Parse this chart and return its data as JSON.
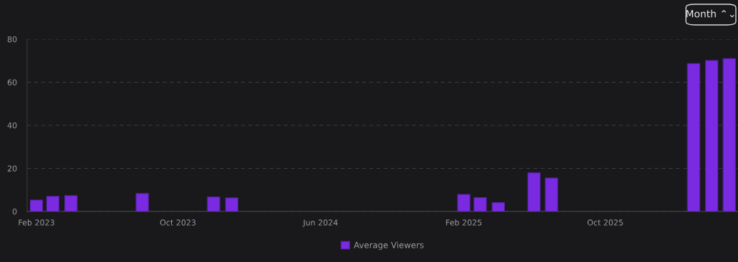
{
  "chart_data": {
    "type": "bar",
    "x": [
      "2023-02",
      "2023-03",
      "2023-04",
      "2023-08",
      "2023-12",
      "2024-01",
      "2025-02",
      "2025-03",
      "2025-04",
      "2025-06",
      "2025-07",
      "2026-03",
      "2026-04",
      "2026-05"
    ],
    "series": [
      {
        "name": "Average Viewers",
        "color": "#7a2be2",
        "values": [
          5.3,
          7.0,
          7.3,
          8.3,
          6.7,
          6.3,
          7.9,
          6.4,
          4.1,
          17.9,
          15.5,
          68.7,
          70.1,
          71.0
        ]
      }
    ],
    "xlim": [
      "2023-01-16",
      "2026-05-16"
    ],
    "xticks": [
      {
        "value": "2023-02",
        "label": "Feb 2023"
      },
      {
        "value": "2023-10",
        "label": "Oct 2023"
      },
      {
        "value": "2024-06",
        "label": "Jun 2024"
      },
      {
        "value": "2025-02",
        "label": "Feb 2025"
      },
      {
        "value": "2025-10",
        "label": "Oct 2025"
      }
    ],
    "ylim": [
      0,
      80
    ],
    "yticks": [
      0,
      20,
      40,
      60,
      80
    ],
    "grid": "y",
    "legend": "bottom",
    "annotations": [
      "Month ⌃⌄"
    ]
  }
}
